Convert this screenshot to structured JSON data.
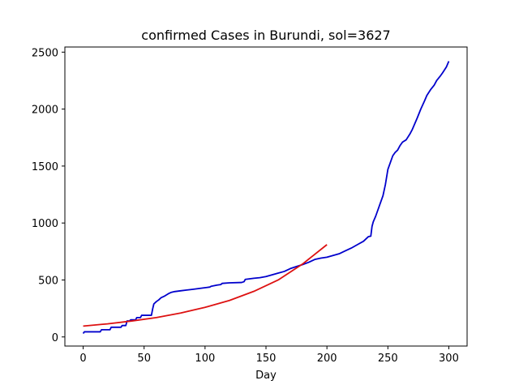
{
  "chart_data": {
    "type": "line",
    "title": "confirmed Cases in Burundi, sol=3627",
    "xlabel": "Day",
    "ylabel": "",
    "xlim": [
      -15,
      315
    ],
    "ylim": [
      -80,
      2545
    ],
    "xticks": [
      0,
      50,
      100,
      150,
      200,
      250,
      300
    ],
    "yticks": [
      0,
      500,
      1000,
      1500,
      2000,
      2500
    ],
    "grid": false,
    "series": [
      {
        "color": "#0000cc",
        "x": [
          0,
          1,
          2,
          14,
          15,
          22,
          23,
          31,
          32,
          35,
          36,
          38,
          39,
          43,
          44,
          47,
          48,
          56,
          57,
          58,
          60,
          62,
          64,
          67,
          70,
          72,
          75,
          80,
          85,
          90,
          95,
          100,
          104,
          105,
          110,
          113,
          114,
          120,
          130,
          132,
          133,
          140,
          145,
          150,
          155,
          160,
          165,
          170,
          175,
          180,
          185,
          190,
          195,
          200,
          205,
          210,
          215,
          220,
          225,
          230,
          233,
          234,
          236,
          237,
          238,
          240,
          243,
          246,
          248,
          250,
          252,
          254,
          256,
          258,
          260,
          262,
          265,
          268,
          270,
          272,
          274,
          277,
          280,
          282,
          285,
          288,
          290,
          293,
          295,
          298,
          300
        ],
        "y": [
          30,
          45,
          45,
          45,
          63,
          63,
          85,
          85,
          100,
          100,
          140,
          140,
          150,
          150,
          170,
          170,
          190,
          190,
          245,
          290,
          310,
          325,
          345,
          360,
          380,
          390,
          398,
          405,
          412,
          418,
          425,
          432,
          438,
          445,
          455,
          460,
          470,
          475,
          478,
          485,
          505,
          515,
          520,
          530,
          545,
          560,
          575,
          600,
          618,
          635,
          655,
          680,
          692,
          700,
          715,
          730,
          755,
          780,
          810,
          840,
          870,
          880,
          885,
          970,
          1010,
          1060,
          1150,
          1240,
          1340,
          1470,
          1530,
          1590,
          1620,
          1640,
          1680,
          1710,
          1730,
          1780,
          1820,
          1870,
          1920,
          2000,
          2070,
          2120,
          2170,
          2210,
          2250,
          2290,
          2320,
          2370,
          2420
        ]
      },
      {
        "color": "#dd1111",
        "x": [
          0,
          20,
          40,
          60,
          80,
          100,
          120,
          140,
          160,
          180,
          200
        ],
        "y": [
          95,
          115,
          140,
          170,
          210,
          260,
          320,
          400,
          500,
          640,
          810
        ]
      }
    ]
  }
}
